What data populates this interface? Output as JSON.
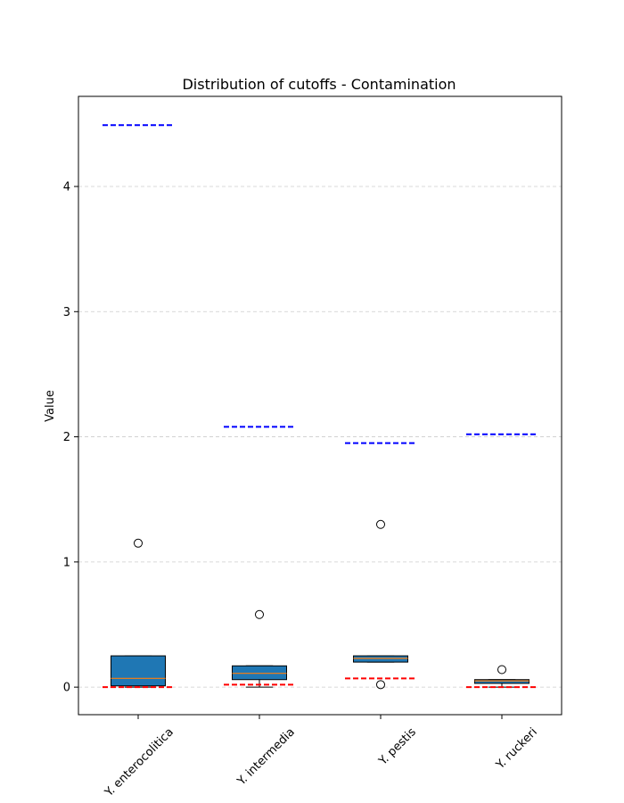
{
  "chart_data": {
    "type": "box",
    "title": "Distribution of cutoffs - Contamination",
    "xlabel": "",
    "ylabel": "Value",
    "ylim": [
      -0.22,
      4.72
    ],
    "yticks": [
      0,
      1,
      2,
      3,
      4
    ],
    "grid": "y-dashed",
    "colors": {
      "box_fill": "#1f77b4",
      "median": "#ff7f0e",
      "upper_ref": "#0000ff",
      "lower_ref": "#ff0000",
      "grid": "#cccccc"
    },
    "categories": [
      "Y. enterocolitica",
      "Y. intermedia",
      "Y. pestis",
      "Y. ruckeri"
    ],
    "boxes": [
      {
        "whisker_low": 0.0,
        "q1": 0.01,
        "median": 0.07,
        "q3": 0.25,
        "whisker_high": 0.25,
        "outliers": [
          1.15
        ]
      },
      {
        "whisker_low": 0.0,
        "q1": 0.06,
        "median": 0.11,
        "q3": 0.17,
        "whisker_high": 0.17,
        "outliers": [
          0.58
        ]
      },
      {
        "whisker_low": 0.2,
        "q1": 0.2,
        "median": 0.23,
        "q3": 0.25,
        "whisker_high": 0.25,
        "outliers": [
          1.3,
          0.02
        ]
      },
      {
        "whisker_low": 0.0,
        "q1": 0.03,
        "median": 0.05,
        "q3": 0.06,
        "whisker_high": 0.06,
        "outliers": [
          0.14
        ]
      }
    ],
    "reference_lines": {
      "upper": [
        4.49,
        2.08,
        1.95,
        2.02
      ],
      "lower": [
        0.0,
        0.02,
        0.07,
        0.0
      ]
    }
  }
}
